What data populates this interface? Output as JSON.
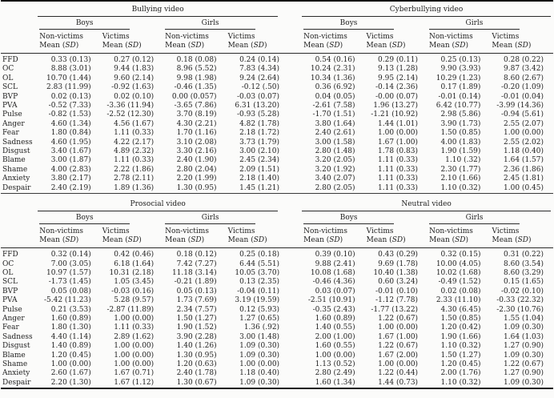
{
  "colors": {
    "background": "#fbfbfa",
    "text": "#1a1a1a",
    "rule": "#141414"
  },
  "headers": {
    "boys": "Boys",
    "girls": "Girls",
    "non_victims": "Non-victims",
    "victims": "Victims",
    "mean_prefix": "Mean (",
    "sd_label": "SD",
    "mean_suffix": ")"
  },
  "rows": [
    "FFD",
    "OC",
    "OL",
    "SCL",
    "BVP",
    "PVA",
    "Pulse",
    "Anger",
    "Fear",
    "Sadness",
    "Disgust",
    "Blame",
    "Shame",
    "Anxiety",
    "Despair"
  ],
  "tables": [
    {
      "groups": [
        {
          "title": "Bullying video",
          "boys": {
            "nonvictims": [
              "0.33 (0.13)",
              "8.88 (3.01)",
              "10.70 (1.44)",
              "2.83 (11.99)",
              "0.02 (0.13)",
              "-0.52 (7.33)",
              "-0.82 (1.53)",
              "4.60 (1.34)",
              "1.80 (0.84)",
              "4.60 (1.95)",
              "3.40 (1.67)",
              "3.00 (1.87)",
              "4.00 (2.83)",
              "3.80 (2.17)",
              "2.40 (2.19)"
            ],
            "victims": [
              "0.27 (0.12)",
              "9.44 (1.83)",
              "9.60 (2.14)",
              "-0.92 (1.63)",
              "0.02 (0.10)",
              "-3.36 (11.94)",
              "-2.52 (12.30)",
              "4.56 (1.67)",
              "1.11 (0.33)",
              "4.22 (2.17)",
              "4.89 (2.32)",
              "1.11 (0.33)",
              "2.22 (1.86)",
              "2.78 (2.11)",
              "1.89 (1.36)"
            ]
          },
          "girls": {
            "nonvictims": [
              "0.18 (0.08)",
              "8.96 (5.52)",
              "9.98 (1.98)",
              "-0.46 (1.35)",
              "0.00 (0.057)",
              "-3.65 (7.86)",
              "3.70 (8.19)",
              "4.30 (2.21)",
              "1.70 (1.16)",
              "3.10 (2.08)",
              "3.30 (2.16)",
              "2.40 (1.90)",
              "2.80 (2.04)",
              "2.20 (1.99)",
              "1.30 (0.95)"
            ],
            "victims": [
              "0.24 (0.14)",
              "7.83 (4.34)",
              "9.24 (2.64)",
              "-0.12 (.50)",
              "-0.03 (0.07)",
              "6.31 (13.20)",
              "-0.93 (5.28)",
              "4.82 (1.78)",
              "2.18 (1.72)",
              "3.73 (1.79)",
              "3.00 (2.10)",
              "2.45 (2.34)",
              "2.09 (1.51)",
              "2.18 (1.40)",
              "1.45 (1.21)"
            ]
          }
        },
        {
          "title": "Cyberbullying video",
          "boys": {
            "nonvictims": [
              "0.54 (0.16)",
              "10.24 (2.31)",
              "10.34 (1.36)",
              "0.36 (6.92)",
              "0.04 (0.05)",
              "-2.61 (7.58)",
              "-1.70 (1.51)",
              "3.80 (1.64)",
              "2.40 (2.61)",
              "3.00 (1.58)",
              "2.80 (1.48)",
              "3.20 (2.05)",
              "3.20 (1.92)",
              "3.40 (2.07)",
              "2.80 (2.05)"
            ],
            "victims": [
              "0.29 (0.11)",
              "9.13 (1.28)",
              "9.95 (2.14)",
              "-0.14 (2.36)",
              "-0.00 (0.07)",
              "1.96 (13.27)",
              "-1.21 (10.92)",
              "1.44 (1.01)",
              "1.00 (0.00)",
              "1.67 (1.00)",
              "1.78 (0.83)",
              "1.11 (0.33)",
              "1.11 (0.33)",
              "1.11 (0.33)",
              "1.11 (0.33)"
            ]
          },
          "girls": {
            "nonvictims": [
              "0.25 (0.13)",
              "9.90 (3.93)",
              "10.29 (1.23)",
              "0.17 (1.89)",
              "-0.01 (0.14)",
              "6.42 (10.77)",
              "2.98 (5.86)",
              "3.90 (1.73)",
              "1.50 (0.85)",
              "4.00 (1.83)",
              "1.90 (1.59)",
              "1.10 (.32)",
              "2.30 (1.77)",
              "2.10 (1.66)",
              "1.10 (0.32)"
            ],
            "victims": [
              "0.28 (0.22)",
              "9.87 (3.42)",
              "8.60 (2.67)",
              "-0.20 (1.09)",
              "-0.01 (0.04)",
              "-3.99 (14.36)",
              "-0.94 (5.61)",
              "2.55 (2.07)",
              "1.00 (0.00)",
              "2.55 (2.02)",
              "1.18 (0.40)",
              "1.64 (1.57)",
              "2.36 (1.86)",
              "2.45 (1.81)",
              "1.00 (0.45)"
            ]
          }
        }
      ]
    },
    {
      "groups": [
        {
          "title": "Prosocial video",
          "boys": {
            "nonvictims": [
              "0.32 (0.14)",
              "7.00 (3.05)",
              "10.97 (1.57)",
              "-1.73 (1.45)",
              "0.05 (0.08)",
              "-5.42 (11.23)",
              "0.21 (3.53)",
              "1.60 (0.89)",
              "1.80 (1.30)",
              "4.40 (1.14)",
              "1.40 (0.89)",
              "1.20 (0.45)",
              "1.00 (0.00)",
              "2.60 (1.67)",
              "2.20 (1.30)"
            ],
            "victims": [
              "0.42 (0.46)",
              "6.18 (1.64)",
              "10.31 (2.18)",
              "1.05 (3.45)",
              "-0.03 (0.16)",
              "5.28 (9.57)",
              "-2.87 (11.89)",
              "1.00 (0.00)",
              "1.11 (0.33)",
              "2.89 (1.62)",
              "1.00 (0.00)",
              "1.00 (0.00)",
              "1.00 (0.00)",
              "1.67 (0.71)",
              "1.67 (1.12)"
            ]
          },
          "girls": {
            "nonvictims": [
              "0.18 (0.12)",
              "7.42 (7.27)",
              "11.18 (3.14)",
              "-0.21 (1.89)",
              "0.05 (0.13)",
              "1.73 (7.69)",
              "2.34 (7.57)",
              "1.50 (1.27)",
              "1.90 (1.52)",
              "3.90 (2.28)",
              "1.40 (1.26)",
              "1.30 (0.95)",
              "1.20 (0.63)",
              "2.40 (1.78)",
              "1.30 (0.67)"
            ],
            "victims": [
              "0.25 (0.18)",
              "6.44 (5.51)",
              "10.05 (3.70)",
              "0.13 (2.35)",
              "-0.04 (0.11)",
              "3.19 (19.59)",
              "0.12 (5.93)",
              "1.27 (0.65)",
              "1.36 (.92)",
              "3.00 (1.48)",
              "1.09 (0.30)",
              "1.09 (0.30)",
              "1.00 (0.00)",
              "1.18 (0.40)",
              "1.09 (0.30)"
            ]
          }
        },
        {
          "title": "Neutral video",
          "boys": {
            "nonvictims": [
              "0.39 (0.10)",
              "9.88 (2.41)",
              "10.08 (1.68)",
              "-0.46 (4.36)",
              "0.03 (0.07)",
              "-2.51 (10.91)",
              "-0.35 (2.43)",
              "1.60 (0.89)",
              "1.40 (0.55)",
              "2.00 (1.00)",
              "1.60 (0.55)",
              "1.00 (0.00)",
              "1.13 (0.52)",
              "2.80 (2.49)",
              "1.60 (1.34)"
            ],
            "victims": [
              "0.43 (0.29)",
              "9.69 (1.78)",
              "10.40 (1.38)",
              "0.60 (3.24)",
              "-0.01 (0.10)",
              "-1.12 (7.78)",
              "-1.77 (13.22)",
              "1.22 (0.67)",
              "1.00 (0.00)",
              "1.67 (1.00)",
              "1.22 (0.67)",
              "1.67 (2.00)",
              "1.00 (0.00)",
              "1.22 (0.44)",
              "1.44 (0.73)"
            ]
          },
          "girls": {
            "nonvictims": [
              "0.32 (0.15)",
              "10.00 (4.05)",
              "10.02 (1.68)",
              "-0.49 (1.52)",
              "0.02 (0.08)",
              "2.33 (11.10)",
              "4.30 (6.45)",
              "1.50 (0.85)",
              "1.20 (0.42)",
              "1.90 (1.66)",
              "1.10 (0.32)",
              "1.50 (1.27)",
              "1.20 (0.45)",
              "2.00 (1.76)",
              "1.10 (0.32)"
            ],
            "victims": [
              "0.31 (0.22)",
              "8.60 (3.54)",
              "8.60 (3.29)",
              "0.15 (1.65)",
              "-0.02 (0.10)",
              "-0.33 (22.32)",
              "-2.30 (10.76)",
              "1.55 (1.04)",
              "1.09 (0.30)",
              "1.64 (1.03)",
              "1.27 (0.90)",
              "1.09 (0.30)",
              "1.22 (0.67)",
              "1.27 (0.90)",
              "1.09 (0.30)"
            ]
          }
        }
      ]
    }
  ]
}
